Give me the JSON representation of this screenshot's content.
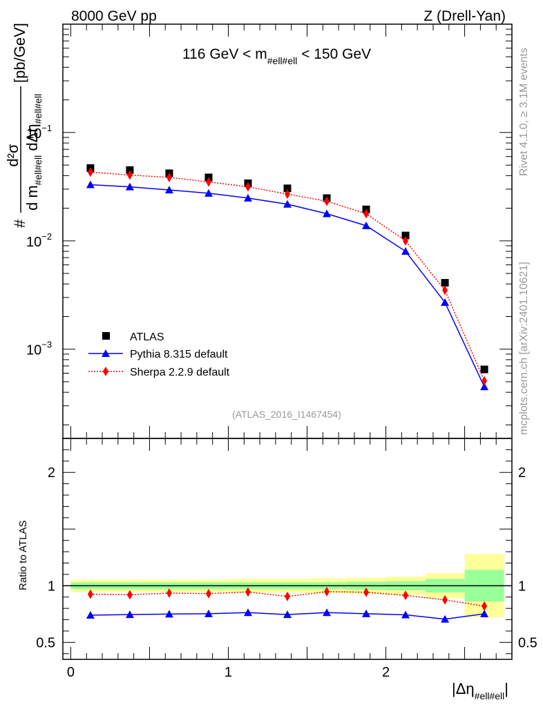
{
  "header": {
    "left": "8000 GeV pp",
    "right": "Z (Drell-Yan)"
  },
  "side_labels": {
    "rivet": "Rivet 4.1.0, ≥ 3.1M events",
    "mcplots": "mcplots.cern.ch [arXiv:2401.10621]"
  },
  "chart_data": {
    "type": "scatter",
    "title_prefix": "116 GeV < m",
    "title_sub": "#ell#ell",
    "title_suffix": " < 150 GeV",
    "analysis_id": "(ATLAS_2016_I1467454)",
    "colors": {
      "data": "#000000",
      "pythia": "#0000ff",
      "sherpa": "#ff0000",
      "band_green": "#99ff99",
      "band_yellow": "#ffff99"
    },
    "x": [
      0.125,
      0.375,
      0.625,
      0.875,
      1.125,
      1.375,
      1.625,
      1.875,
      2.125,
      2.375,
      2.625
    ],
    "x_edges": [
      0,
      0.25,
      0.5,
      0.75,
      1.0,
      1.25,
      1.5,
      1.75,
      2.0,
      2.25,
      2.5,
      2.75
    ],
    "main": {
      "ylabel": {
        "hash": "#",
        "num": "d²σ",
        "den_prefix": "d m",
        "den_sub1": "#ell#ell",
        "den_mid": " dΔη",
        "den_sub2": "#ell#ell",
        "unit": "[pb/GeV]"
      },
      "yscale": "log",
      "ylim": [
        0.00015,
        1.0
      ],
      "yticks": [
        {
          "value": 0.1,
          "base": "10",
          "exp": "−1"
        },
        {
          "value": 0.01,
          "base": "10",
          "exp": "−2"
        },
        {
          "value": 0.001,
          "base": "10",
          "exp": "−3"
        }
      ],
      "series": [
        {
          "name": "ATLAS",
          "key": "data",
          "marker": "square",
          "values": [
            0.047,
            0.045,
            0.042,
            0.0385,
            0.034,
            0.0305,
            0.0248,
            0.0195,
            0.0112,
            0.0041,
            0.00065
          ]
        },
        {
          "name": "Pythia 8.315 default",
          "key": "pythia",
          "marker": "triangle",
          "line": "solid",
          "values": [
            0.033,
            0.0315,
            0.0295,
            0.0275,
            0.0248,
            0.0218,
            0.0178,
            0.0138,
            0.008,
            0.0027,
            0.00045
          ]
        },
        {
          "name": "Sherpa 2.2.9 default",
          "key": "sherpa",
          "marker": "diamond",
          "line": "dotted",
          "values": [
            0.043,
            0.0405,
            0.0385,
            0.035,
            0.0315,
            0.027,
            0.0232,
            0.0178,
            0.01,
            0.0035,
            0.00051
          ]
        }
      ]
    },
    "ratio": {
      "ylabel": "Ratio to ATLAS",
      "ylim": [
        0.35,
        2.3
      ],
      "yticks": [
        {
          "value": 0.5,
          "label": "0.5"
        },
        {
          "value": 1,
          "label": "1"
        },
        {
          "value": 2,
          "label": "2"
        }
      ],
      "band_green": [
        0.03,
        0.03,
        0.03,
        0.03,
        0.03,
        0.03,
        0.03,
        0.035,
        0.04,
        0.06,
        0.14
      ],
      "band_yellow": [
        0.055,
        0.055,
        0.055,
        0.055,
        0.06,
        0.06,
        0.065,
        0.07,
        0.08,
        0.11,
        0.28
      ],
      "series": [
        {
          "name": "Pythia 8.315 default",
          "key": "pythia",
          "marker": "triangle",
          "line": "solid",
          "values": [
            0.74,
            0.745,
            0.75,
            0.753,
            0.763,
            0.745,
            0.763,
            0.753,
            0.743,
            0.705,
            0.752
          ],
          "err_last": 0.03
        },
        {
          "name": "Sherpa 2.2.9 default",
          "key": "sherpa",
          "marker": "diamond",
          "line": "dotted",
          "values": [
            0.925,
            0.92,
            0.935,
            0.93,
            0.945,
            0.905,
            0.948,
            0.942,
            0.915,
            0.875,
            0.82
          ]
        }
      ]
    },
    "xaxis": {
      "xlim": [
        -0.05,
        2.8
      ],
      "ticks": [
        {
          "value": 0,
          "label": "0"
        },
        {
          "value": 1,
          "label": "1"
        },
        {
          "value": 2,
          "label": "2"
        }
      ],
      "xlabel_prefix": "|Δη",
      "xlabel_sub": "#ell#ell",
      "xlabel_suffix": "|"
    }
  }
}
